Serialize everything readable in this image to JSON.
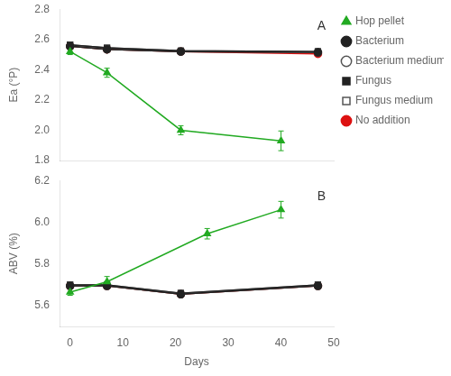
{
  "chart_data": [
    {
      "type": "line",
      "ylabel": "Ea (°P)",
      "annotation": "A",
      "xlim": [
        -2,
        50
      ],
      "xticks": [
        0,
        10,
        20,
        30,
        40,
        50
      ],
      "ylim": [
        1.8,
        2.8
      ],
      "yticks": [
        1.8,
        {
          "value": 2,
          "label": "2.0"
        },
        2.2,
        2.4,
        2.6,
        2.8
      ],
      "tick_labels": "y",
      "grid": false,
      "legend": "right",
      "series": [
        {
          "name": "Hop pellet",
          "color": "#22aa22",
          "marker": "triangle",
          "x": [
            0,
            7,
            21,
            40
          ],
          "values": [
            2.52,
            2.38,
            2.0,
            1.93
          ],
          "yerr": [
            0.02,
            0.03,
            0.03,
            0.065
          ]
        },
        {
          "name": "Bacterium",
          "color": "#222222",
          "marker": "circle",
          "x": [
            0,
            7,
            21,
            47
          ],
          "values": [
            2.555,
            2.535,
            2.52,
            2.515
          ],
          "yerr": [
            0.005,
            0.005,
            0.005,
            0.005
          ]
        },
        {
          "name": "Bacterium medium",
          "color": "#555555",
          "marker": "open_circle",
          "x": [
            0,
            7,
            21,
            47
          ],
          "values": [
            2.555,
            2.535,
            2.52,
            2.515
          ],
          "yerr": [
            0.005,
            0.005,
            0.005,
            0.005
          ]
        },
        {
          "name": "Fungus",
          "color": "#222222",
          "marker": "square",
          "x": [
            0,
            7,
            21,
            47
          ],
          "values": [
            2.565,
            2.545,
            2.525,
            2.52
          ],
          "yerr": [
            0.005,
            0.005,
            0.005,
            0.005
          ]
        },
        {
          "name": "Fungus medium",
          "color": "#555555",
          "marker": "open_square",
          "x": [
            0,
            7,
            21,
            47
          ],
          "values": [
            2.565,
            2.545,
            2.525,
            2.52
          ],
          "yerr": [
            0.005,
            0.005,
            0.005,
            0.005
          ]
        },
        {
          "name": "No addition",
          "color": "#dd1111",
          "marker": "circle",
          "x": [
            0,
            7,
            21,
            47
          ],
          "values": [
            2.555,
            2.535,
            2.52,
            2.505
          ],
          "yerr": [
            0.005,
            0.005,
            0.005,
            0.005
          ]
        }
      ]
    },
    {
      "type": "line",
      "ylabel": "ABV (%)",
      "xlabel": "Days",
      "annotation": "B",
      "xlim": [
        -2,
        50
      ],
      "xticks": [
        0,
        10,
        20,
        30,
        40,
        50
      ],
      "ylim": [
        5.5,
        6.2
      ],
      "yticks": [
        5.6,
        5.8,
        {
          "value": 6,
          "label": "6.0"
        },
        6.2
      ],
      "grid": false,
      "series": [
        {
          "name": "Hop pellet",
          "color": "#22aa22",
          "marker": "triangle",
          "x": [
            0,
            7,
            26,
            40
          ],
          "values": [
            5.665,
            5.715,
            5.945,
            6.06
          ],
          "yerr": [
            0.015,
            0.025,
            0.025,
            0.04
          ]
        },
        {
          "name": "Bacterium",
          "color": "#222222",
          "marker": "circle",
          "x": [
            0,
            7,
            21,
            47
          ],
          "values": [
            5.695,
            5.695,
            5.655,
            5.695
          ],
          "yerr": [
            0.01,
            0.01,
            0.01,
            0.01
          ]
        },
        {
          "name": "Bacterium medium",
          "color": "#555555",
          "marker": "open_circle",
          "x": [
            0,
            7,
            21,
            47
          ],
          "values": [
            5.695,
            5.695,
            5.655,
            5.695
          ],
          "yerr": [
            0.01,
            0.01,
            0.01,
            0.01
          ]
        },
        {
          "name": "Fungus",
          "color": "#222222",
          "marker": "square",
          "x": [
            0,
            7,
            21,
            47
          ],
          "values": [
            5.7,
            5.7,
            5.66,
            5.7
          ],
          "yerr": [
            0.01,
            0.01,
            0.01,
            0.01
          ]
        },
        {
          "name": "Fungus medium",
          "color": "#555555",
          "marker": "open_square",
          "x": [
            0,
            7,
            21,
            47
          ],
          "values": [
            5.7,
            5.7,
            5.66,
            5.7
          ],
          "yerr": [
            0.01,
            0.01,
            0.01,
            0.01
          ]
        },
        {
          "name": "No addition",
          "color": "#dd1111",
          "marker": "circle",
          "x": [
            0,
            7,
            21,
            47
          ],
          "values": [
            5.695,
            5.695,
            5.655,
            5.695
          ],
          "yerr": [
            0.01,
            0.01,
            0.01,
            0.01
          ]
        }
      ]
    }
  ]
}
